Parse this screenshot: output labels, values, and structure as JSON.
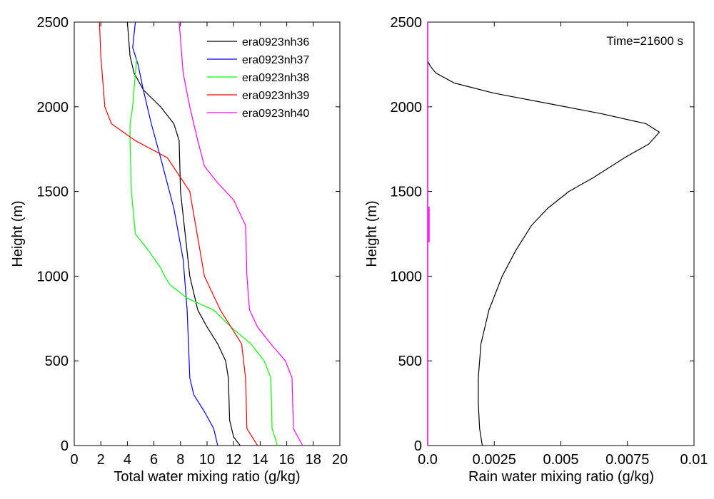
{
  "chart_data": [
    {
      "type": "line",
      "xlabel": "Total water mixing ratio (g/kg)",
      "ylabel": "Height (m)",
      "xlim": [
        0,
        20
      ],
      "ylim": [
        0,
        2500
      ],
      "xticks": [
        "0",
        "2",
        "4",
        "6",
        "8",
        "10",
        "12",
        "14",
        "16",
        "18",
        "20"
      ],
      "yticks": [
        "0",
        "500",
        "1000",
        "1500",
        "2000",
        "2500"
      ],
      "grid": false,
      "legend_position": "top-right",
      "series": [
        {
          "name": "era0923nh36",
          "color": "#000000",
          "points": [
            [
              12.5,
              0
            ],
            [
              12.0,
              50
            ],
            [
              11.7,
              150
            ],
            [
              11.6,
              400
            ],
            [
              11.4,
              500
            ],
            [
              10.8,
              600
            ],
            [
              10.0,
              700
            ],
            [
              9.3,
              800
            ],
            [
              8.7,
              1000
            ],
            [
              8.0,
              1500
            ],
            [
              7.9,
              1800
            ],
            [
              7.5,
              1900
            ],
            [
              6.5,
              2000
            ],
            [
              5.2,
              2100
            ],
            [
              4.5,
              2200
            ],
            [
              4.2,
              2300
            ],
            [
              4.0,
              2500
            ]
          ]
        },
        {
          "name": "era0923nh37",
          "color": "#0000ff",
          "points": [
            [
              10.8,
              0
            ],
            [
              10.5,
              100
            ],
            [
              9.8,
              200
            ],
            [
              9.0,
              300
            ],
            [
              8.7,
              400
            ],
            [
              8.6,
              600
            ],
            [
              8.5,
              800
            ],
            [
              8.2,
              1100
            ],
            [
              7.5,
              1400
            ],
            [
              6.5,
              1700
            ],
            [
              5.8,
              1900
            ],
            [
              5.2,
              2100
            ],
            [
              4.8,
              2250
            ],
            [
              4.4,
              2350
            ],
            [
              4.6,
              2500
            ]
          ]
        },
        {
          "name": "era0923nh38",
          "color": "#00ff00",
          "points": [
            [
              15.3,
              0
            ],
            [
              14.9,
              100
            ],
            [
              14.8,
              400
            ],
            [
              14.3,
              500
            ],
            [
              13.3,
              600
            ],
            [
              11.8,
              700
            ],
            [
              10.5,
              800
            ],
            [
              8.5,
              870
            ],
            [
              7.2,
              950
            ],
            [
              6.8,
              1000
            ],
            [
              6.5,
              1050
            ],
            [
              5.6,
              1150
            ],
            [
              4.6,
              1250
            ],
            [
              4.3,
              1500
            ],
            [
              4.2,
              1800
            ],
            [
              4.2,
              1900
            ],
            [
              4.4,
              2000
            ],
            [
              4.5,
              2100
            ],
            [
              4.6,
              2200
            ],
            [
              4.7,
              2280
            ]
          ]
        },
        {
          "name": "era0923nh39",
          "color": "#ff0000",
          "points": [
            [
              13.8,
              0
            ],
            [
              13.0,
              100
            ],
            [
              12.9,
              400
            ],
            [
              12.6,
              600
            ],
            [
              11.0,
              800
            ],
            [
              9.8,
              1000
            ],
            [
              8.7,
              1500
            ],
            [
              7.0,
              1700
            ],
            [
              4.6,
              1800
            ],
            [
              2.8,
              1900
            ],
            [
              2.3,
              2000
            ],
            [
              2.0,
              2300
            ],
            [
              1.9,
              2500
            ]
          ]
        },
        {
          "name": "era0923nh40",
          "color": "#ff00ff",
          "points": [
            [
              17.2,
              0
            ],
            [
              16.5,
              100
            ],
            [
              16.4,
              400
            ],
            [
              15.9,
              500
            ],
            [
              14.8,
              600
            ],
            [
              13.8,
              700
            ],
            [
              13.2,
              800
            ],
            [
              13.0,
              1000
            ],
            [
              12.9,
              1300
            ],
            [
              12.0,
              1450
            ],
            [
              10.8,
              1550
            ],
            [
              9.8,
              1650
            ],
            [
              9.3,
              1800
            ],
            [
              8.7,
              2000
            ],
            [
              8.2,
              2200
            ],
            [
              8.0,
              2400
            ],
            [
              7.9,
              2500
            ]
          ]
        }
      ]
    },
    {
      "type": "line",
      "xlabel": "Rain water mixing ratio (g/kg)",
      "ylabel": "Height (m)",
      "xlim": [
        0,
        0.01
      ],
      "ylim": [
        0,
        2500
      ],
      "xticks": [
        "0.0",
        "0.0025",
        "0.005",
        "0.0075",
        "0.01"
      ],
      "yticks": [
        "0",
        "500",
        "1000",
        "1500",
        "2000",
        "2500"
      ],
      "grid": false,
      "annotation": "Time=21600 s",
      "series": [
        {
          "color": "#000000",
          "points": [
            [
              0.00205,
              0
            ],
            [
              0.00195,
              100
            ],
            [
              0.0019,
              250
            ],
            [
              0.0019,
              400
            ],
            [
              0.002,
              600
            ],
            [
              0.0023,
              800
            ],
            [
              0.0028,
              1000
            ],
            [
              0.0033,
              1150
            ],
            [
              0.0039,
              1300
            ],
            [
              0.0045,
              1400
            ],
            [
              0.0053,
              1500
            ],
            [
              0.0062,
              1580
            ],
            [
              0.0074,
              1700
            ],
            [
              0.0083,
              1780
            ],
            [
              0.0087,
              1850
            ],
            [
              0.0082,
              1900
            ],
            [
              0.0065,
              1960
            ],
            [
              0.0045,
              2020
            ],
            [
              0.0025,
              2080
            ],
            [
              0.001,
              2140
            ],
            [
              0.0003,
              2200
            ],
            [
              0.0001,
              2240
            ],
            [
              0.0,
              2270
            ]
          ]
        },
        {
          "color": "#ff00ff",
          "points": [
            [
              0.0,
              0
            ],
            [
              0.0,
              2500
            ]
          ]
        },
        {
          "color": "#ff00ff",
          "points": [
            [
              5e-05,
              1200
            ],
            [
              5e-05,
              1410
            ]
          ]
        }
      ]
    }
  ]
}
